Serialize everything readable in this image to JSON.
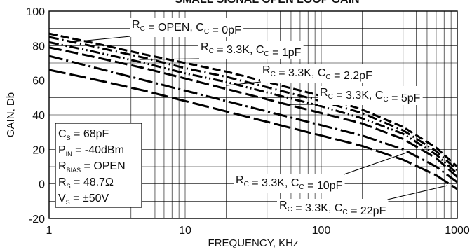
{
  "chart_data": {
    "type": "line",
    "title": "SMALL SIGNAL OPEN LOOP GAIN",
    "xlabel": "FREQUENCY, KHz",
    "ylabel": "GAIN, Db",
    "x_scale": "log",
    "xlim": [
      1,
      1000
    ],
    "ylim": [
      -20,
      100
    ],
    "x_ticks": [
      1,
      10,
      100,
      1000
    ],
    "x_tick_labels": [
      "1",
      "10",
      "100",
      "1000"
    ],
    "y_ticks": [
      -20,
      0,
      20,
      40,
      60,
      80,
      100
    ],
    "y_tick_labels": [
      "-20",
      "0",
      "20",
      "40",
      "60",
      "80",
      "100"
    ],
    "grid": true,
    "series": [
      {
        "name": "R_C = OPEN, C_C = 0pF",
        "label_parts": {
          "r": "R",
          "rsub": "C",
          "rval": " = OPEN, ",
          "c": "C",
          "csub": "C",
          "cval": " = 0pF"
        },
        "dash": "12 5",
        "x": [
          1,
          2,
          5,
          10,
          20,
          50,
          100,
          200,
          400,
          700,
          1000
        ],
        "y": [
          87,
          82,
          75,
          70,
          65,
          57,
          51,
          43,
          33,
          21,
          10
        ]
      },
      {
        "name": "R_C = 3.3K, C_C = 1pF",
        "label_parts": {
          "r": "R",
          "rsub": "C",
          "rval": " = 3.3K, ",
          "c": "C",
          "csub": "C",
          "cval": " = 1pF"
        },
        "dash": "14 5 2 5",
        "x": [
          1,
          2,
          5,
          10,
          20,
          50,
          100,
          200,
          400,
          700,
          1000
        ],
        "y": [
          85,
          80,
          73,
          67,
          62,
          54,
          48,
          41,
          31,
          19,
          8
        ]
      },
      {
        "name": "R_C = 3.3K, C_C = 2.2pF",
        "label_parts": {
          "r": "R",
          "rsub": "C",
          "rval": " = 3.3K, ",
          "c": "C",
          "csub": "C",
          "cval": " = 2.2pF"
        },
        "dash": "14 4 2 4 2 4",
        "x": [
          1,
          2,
          5,
          10,
          20,
          50,
          100,
          200,
          400,
          700,
          1000
        ],
        "y": [
          82,
          77,
          70,
          64,
          59,
          51,
          45,
          38,
          29,
          17,
          6
        ]
      },
      {
        "name": "R_C = 3.3K, C_C = 5pF",
        "label_parts": {
          "r": "R",
          "rsub": "C",
          "rval": " = 3.3K, ",
          "c": "C",
          "csub": "C",
          "cval": " = 5pF"
        },
        "dash": "18 6",
        "x": [
          1,
          2,
          5,
          10,
          20,
          50,
          100,
          200,
          400,
          700,
          1000
        ],
        "y": [
          79,
          74,
          67,
          61,
          55,
          47,
          41,
          35,
          26,
          15,
          4
        ]
      },
      {
        "name": "R_C = 3.3K, C_C = 10pF",
        "label_parts": {
          "r": "R",
          "rsub": "C",
          "rval": " = 3.3K, ",
          "c": "C",
          "csub": "C",
          "cval": " = 10pF"
        },
        "dash": "20 5 3 5",
        "x": [
          1,
          2,
          5,
          10,
          20,
          50,
          100,
          200,
          400,
          700,
          1000
        ],
        "y": [
          74,
          68,
          60,
          54,
          48,
          40,
          34,
          28,
          20,
          10,
          1
        ]
      },
      {
        "name": "R_C = 3.3K, C_C = 22pF",
        "label_parts": {
          "r": "R",
          "rsub": "C",
          "rval": " = 3.3K, ",
          "c": "C",
          "csub": "C",
          "cval": " = 22pF"
        },
        "dash": "24 6",
        "x": [
          1,
          2,
          5,
          10,
          20,
          50,
          100,
          200,
          400,
          700,
          1000
        ],
        "y": [
          66,
          61,
          54,
          48,
          42,
          34,
          28,
          22,
          14,
          5,
          -3
        ]
      }
    ],
    "conditions": [
      {
        "main": "C",
        "sub": "S",
        "value": " = 68pF"
      },
      {
        "main": "P",
        "sub": "IN",
        "value": " = -40dBm"
      },
      {
        "main": "R",
        "sub": "BIAS",
        "value": " = OPEN"
      },
      {
        "main": "R",
        "sub": "S",
        "value": " = 48.7Ω"
      },
      {
        "main": "V",
        "sub": "S",
        "value": " = ±50V"
      }
    ]
  }
}
